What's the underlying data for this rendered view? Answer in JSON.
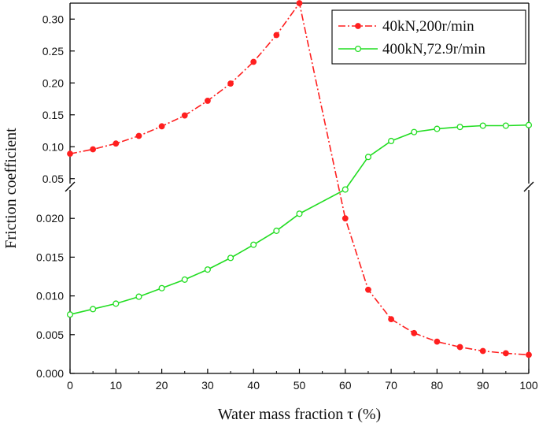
{
  "chart_data": {
    "type": "line",
    "title": "",
    "xlabel": "Water mass fraction τ (%)",
    "ylabel": "Friction coefficient",
    "xlim": [
      0,
      100
    ],
    "y_axis_break": {
      "lower_range": [
        0.0,
        0.025
      ],
      "upper_range": [
        0.025,
        0.325
      ]
    },
    "x_ticks": [
      "0",
      "10",
      "20",
      "30",
      "40",
      "50",
      "60",
      "70",
      "80",
      "90",
      "100"
    ],
    "x_tick_values": [
      0,
      10,
      20,
      30,
      40,
      50,
      60,
      70,
      80,
      90,
      100
    ],
    "y_ticks_lower": [
      "0.000",
      "0.005",
      "0.010",
      "0.015",
      "0.020"
    ],
    "y_tick_values_lower": [
      0.0,
      0.005,
      0.01,
      0.015,
      0.02
    ],
    "y_ticks_upper": [
      "0.05",
      "0.10",
      "0.15",
      "0.20",
      "0.25",
      "0.30"
    ],
    "y_tick_values_upper": [
      0.05,
      0.1,
      0.15,
      0.2,
      0.25,
      0.3
    ],
    "legend_position": "top-right",
    "series": [
      {
        "name": "40kN,200r/min",
        "color": "#ff1f1f",
        "line_style": "dash-dot",
        "marker": "filled-circle",
        "x": [
          0,
          5,
          10,
          15,
          20,
          25,
          30,
          35,
          40,
          45,
          50,
          60,
          65,
          70,
          75,
          80,
          85,
          90,
          95,
          100
        ],
        "y": [
          0.089,
          0.096,
          0.105,
          0.117,
          0.132,
          0.149,
          0.172,
          0.199,
          0.233,
          0.275,
          0.325,
          0.02,
          0.0108,
          0.007,
          0.0052,
          0.0041,
          0.0034,
          0.0029,
          0.0026,
          0.0024
        ]
      },
      {
        "name": "400kN,72.9r/min",
        "color": "#22dd22",
        "line_style": "solid",
        "marker": "open-circle",
        "x": [
          0,
          5,
          10,
          15,
          20,
          25,
          30,
          35,
          40,
          45,
          50,
          60,
          65,
          70,
          75,
          80,
          85,
          90,
          95,
          100
        ],
        "y": [
          0.0076,
          0.0083,
          0.009,
          0.0099,
          0.011,
          0.0121,
          0.0134,
          0.0149,
          0.0166,
          0.0184,
          0.0206,
          0.033,
          0.084,
          0.109,
          0.123,
          0.128,
          0.131,
          0.133,
          0.133,
          0.134
        ]
      }
    ]
  }
}
